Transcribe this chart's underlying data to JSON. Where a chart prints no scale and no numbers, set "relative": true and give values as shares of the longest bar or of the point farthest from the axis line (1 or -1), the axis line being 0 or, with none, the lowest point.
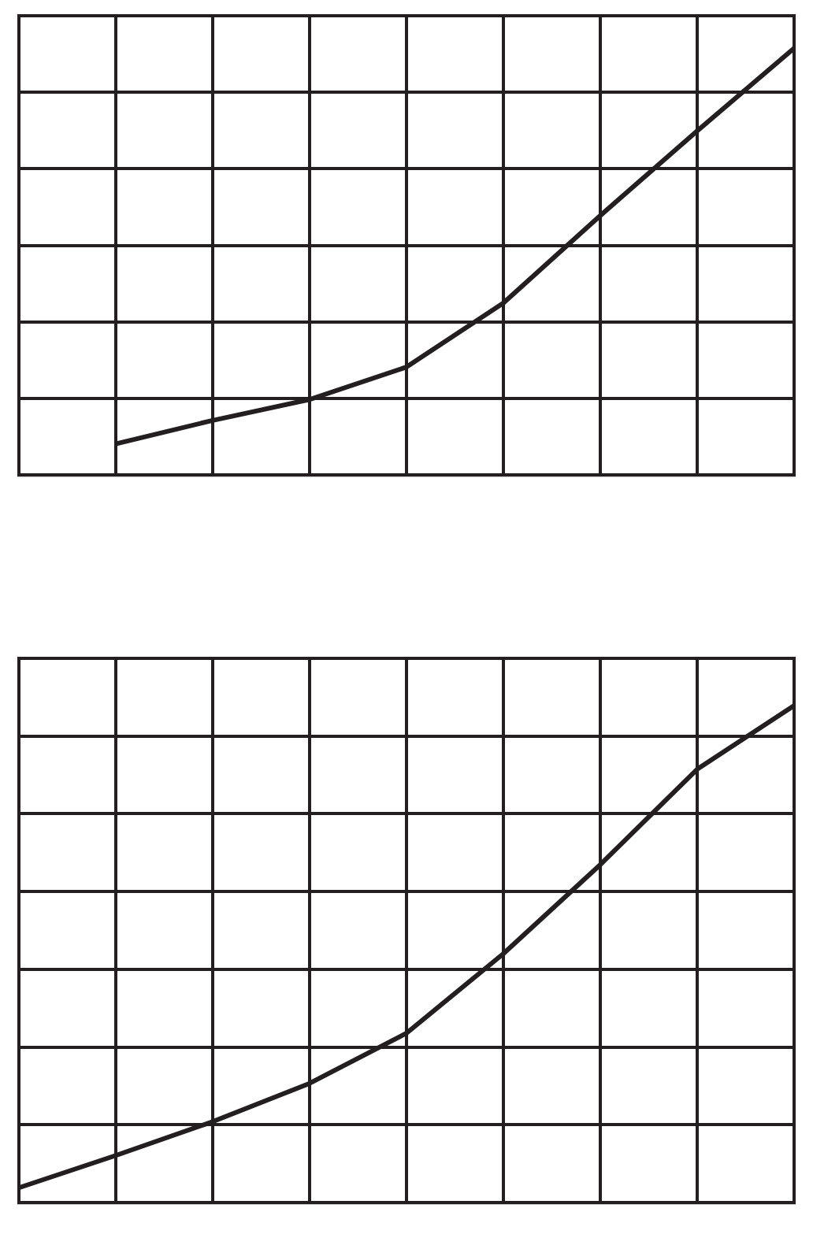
{
  "chart_data": [
    {
      "type": "line",
      "relative": true,
      "categories": [
        null,
        null,
        null,
        null,
        null,
        null,
        null,
        null,
        null
      ],
      "grid": true,
      "marker": "none",
      "legend": false,
      "series": [
        {
          "color": "#231f20",
          "values": [
            null,
            0.073,
            0.128,
            0.177,
            0.253,
            0.403,
            0.608,
            0.806,
            1.0
          ]
        }
      ]
    },
    {
      "type": "line",
      "relative": true,
      "categories": [
        null,
        null,
        null,
        null,
        null,
        null,
        null,
        null,
        null
      ],
      "grid": true,
      "marker": "none",
      "legend": false,
      "series": [
        {
          "color": "#231f20",
          "values": [
            0.03,
            0.095,
            0.163,
            0.24,
            0.341,
            0.501,
            0.68,
            0.872,
            1.0
          ]
        }
      ]
    }
  ]
}
